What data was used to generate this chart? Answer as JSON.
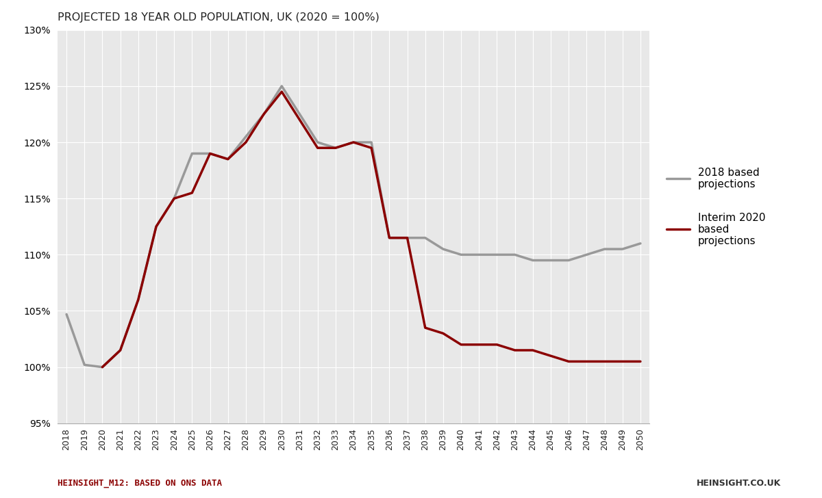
{
  "title": "PROJECTED 18 YEAR OLD POPULATION, UK (2020 = 100%)",
  "years": [
    2018,
    2019,
    2020,
    2021,
    2022,
    2023,
    2024,
    2025,
    2026,
    2027,
    2028,
    2029,
    2030,
    2031,
    2032,
    2033,
    2034,
    2035,
    2036,
    2037,
    2038,
    2039,
    2040,
    2041,
    2042,
    2043,
    2044,
    2045,
    2046,
    2047,
    2048,
    2049,
    2050
  ],
  "series_2018": [
    104.7,
    100.2,
    100.0,
    101.5,
    106.0,
    112.5,
    115.0,
    119.0,
    119.0,
    118.5,
    120.5,
    122.5,
    125.0,
    122.5,
    120.0,
    119.5,
    120.0,
    120.0,
    111.5,
    111.5,
    111.5,
    110.5,
    110.0,
    110.0,
    110.0,
    110.0,
    109.5,
    109.5,
    109.5,
    110.0,
    110.5,
    110.5,
    111.0
  ],
  "series_2020": [
    null,
    null,
    100.0,
    101.5,
    106.0,
    112.5,
    115.0,
    115.5,
    119.0,
    118.5,
    120.0,
    122.5,
    124.5,
    122.0,
    119.5,
    119.5,
    120.0,
    119.5,
    111.5,
    111.5,
    103.5,
    103.0,
    102.0,
    102.0,
    102.0,
    101.5,
    101.5,
    101.0,
    100.5,
    100.5,
    100.5,
    100.5,
    100.5
  ],
  "color_2018": "#999999",
  "color_2020": "#8B0000",
  "ylim": [
    95,
    130
  ],
  "yticks": [
    95,
    100,
    105,
    110,
    115,
    120,
    125,
    130
  ],
  "plot_bg": "#e8e8e8",
  "fig_bg": "#ffffff",
  "footer_left": "HEINSIGHT_M12: BASED ON ONS DATA",
  "footer_right": "HEINSIGHT.CO.UK",
  "footer_left_color": "#8B0000",
  "footer_right_color": "#333333",
  "legend_label_2018": "2018 based\nprojections",
  "legend_label_2020": "Interim 2020\nbased\nprojections",
  "linewidth": 2.5
}
